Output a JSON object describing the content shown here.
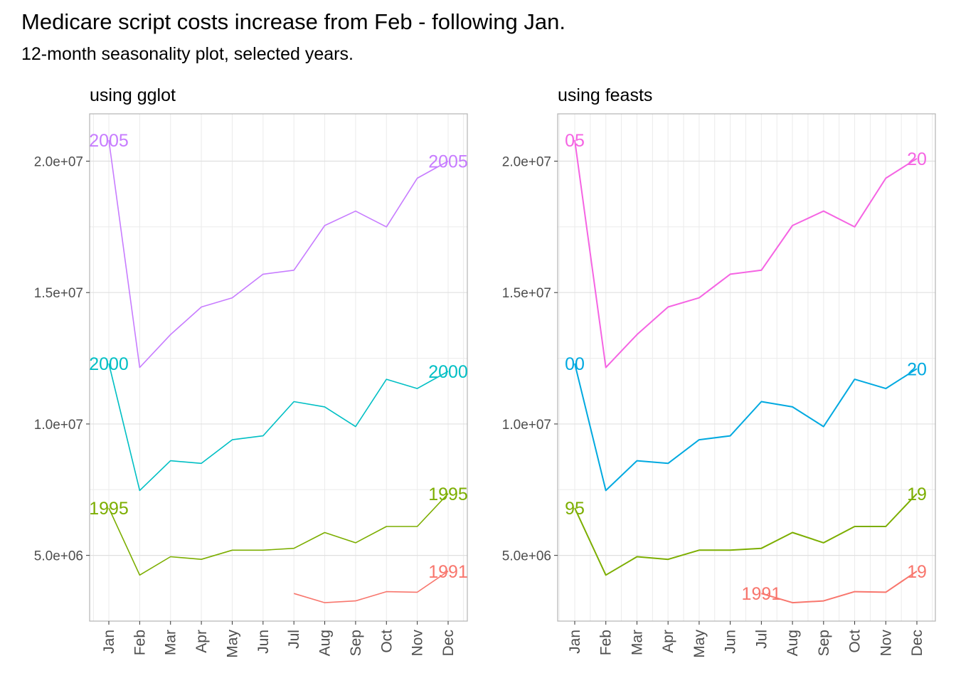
{
  "header": {
    "title": "Medicare script costs increase from Feb - following Jan.",
    "subtitle": "12-month seasonality plot, selected years."
  },
  "chart_data": [
    {
      "type": "line",
      "title": "using gglot",
      "xlabel": "",
      "ylabel": "",
      "categories": [
        "Jan",
        "Feb",
        "Mar",
        "Apr",
        "May",
        "Jun",
        "Jul",
        "Aug",
        "Sep",
        "Oct",
        "Nov",
        "Dec"
      ],
      "y_ticks": [
        5000000,
        10000000,
        15000000,
        20000000
      ],
      "y_tick_labels": [
        "5.0e+06",
        "1.0e+07",
        "1.5e+07",
        "2.0e+07"
      ],
      "ylim": [
        2500000,
        21800000
      ],
      "grid": true,
      "legend": "none",
      "series": [
        {
          "name": "1991",
          "color": "#F8766D",
          "values": [
            null,
            null,
            null,
            null,
            null,
            null,
            3550000,
            3200000,
            3270000,
            3620000,
            3600000,
            4400000
          ],
          "label_at": [
            "Dec"
          ],
          "label_text": [
            "1991"
          ]
        },
        {
          "name": "1995",
          "color": "#7CAE00",
          "values": [
            6800000,
            4250000,
            4950000,
            4850000,
            5200000,
            5200000,
            5270000,
            5870000,
            5480000,
            6100000,
            6100000,
            7350000
          ],
          "label_at": [
            "Jan",
            "Dec"
          ],
          "label_text": [
            "1995",
            "1995"
          ]
        },
        {
          "name": "2000",
          "color": "#00BFC4",
          "values": [
            12300000,
            7470000,
            8600000,
            8500000,
            9400000,
            9550000,
            10850000,
            10650000,
            9900000,
            11700000,
            11350000,
            12000000
          ],
          "label_at": [
            "Jan",
            "Dec"
          ],
          "label_text": [
            "2000",
            "2000"
          ]
        },
        {
          "name": "2005",
          "color": "#C77CFF",
          "values": [
            20800000,
            12150000,
            13400000,
            14450000,
            14800000,
            15700000,
            15850000,
            17550000,
            18100000,
            17500000,
            19350000,
            20000000
          ],
          "label_at": [
            "Jan",
            "Dec"
          ],
          "label_text": [
            "2005",
            "2005"
          ]
        }
      ]
    },
    {
      "type": "line",
      "title": "using feasts",
      "xlabel": "",
      "ylabel": "",
      "categories": [
        "Jan",
        "Feb",
        "Mar",
        "Apr",
        "May",
        "Jun",
        "Jul",
        "Aug",
        "Sep",
        "Oct",
        "Nov",
        "Dec"
      ],
      "y_ticks": [
        5000000,
        10000000,
        15000000,
        20000000
      ],
      "y_tick_labels": [
        "5.0e+06",
        "1.0e+07",
        "1.5e+07",
        "2.0e+07"
      ],
      "ylim": [
        2500000,
        21800000
      ],
      "grid": true,
      "legend": "none",
      "series": [
        {
          "name": "1991",
          "color": "#F8766D",
          "values": [
            null,
            null,
            null,
            null,
            null,
            null,
            3550000,
            3200000,
            3270000,
            3620000,
            3600000,
            4400000
          ],
          "label_at": [
            "Jul",
            "Dec"
          ],
          "label_text": [
            "1991",
            "19"
          ]
        },
        {
          "name": "1995",
          "color": "#7CAE00",
          "values": [
            6800000,
            4250000,
            4950000,
            4850000,
            5200000,
            5200000,
            5270000,
            5870000,
            5480000,
            6100000,
            6100000,
            7350000
          ],
          "label_at": [
            "Jan",
            "Dec"
          ],
          "label_text": [
            "95",
            "19"
          ]
        },
        {
          "name": "2000",
          "color": "#00A9E0",
          "values": [
            12300000,
            7470000,
            8600000,
            8500000,
            9400000,
            9550000,
            10850000,
            10650000,
            9900000,
            11700000,
            11350000,
            12100000
          ],
          "label_at": [
            "Jan",
            "Dec"
          ],
          "label_text": [
            "00",
            "20"
          ]
        },
        {
          "name": "2005",
          "color": "#F564E3",
          "values": [
            20800000,
            12150000,
            13400000,
            14450000,
            14800000,
            15700000,
            15850000,
            17550000,
            18100000,
            17500000,
            19350000,
            20100000
          ],
          "label_at": [
            "Jan",
            "Dec"
          ],
          "label_text": [
            "05",
            "20"
          ]
        }
      ]
    }
  ]
}
